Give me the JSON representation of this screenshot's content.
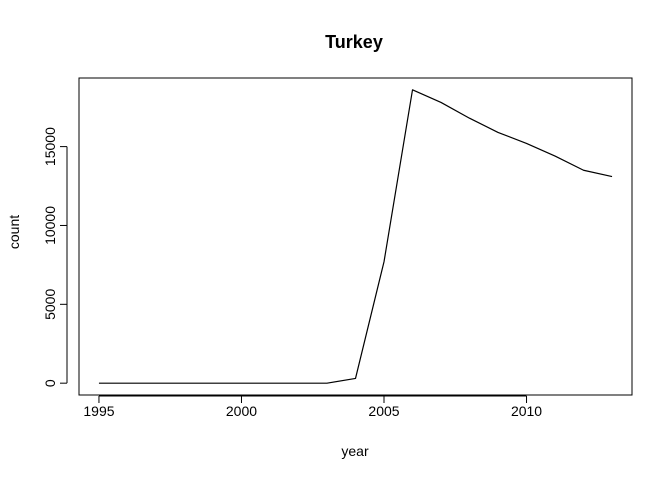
{
  "chart_data": {
    "type": "line",
    "title": "Turkey",
    "xlabel": "year",
    "ylabel": "count",
    "x": [
      1995,
      1996,
      1997,
      1998,
      1999,
      2000,
      2001,
      2002,
      2003,
      2004,
      2005,
      2006,
      2007,
      2008,
      2009,
      2010,
      2011,
      2012,
      2013
    ],
    "series": [
      {
        "values": [
          0,
          0,
          0,
          0,
          0,
          0,
          0,
          0,
          0,
          300,
          7700,
          18600,
          17800,
          16800,
          15900,
          15200,
          14400,
          13500,
          13100
        ]
      }
    ],
    "xlim": [
      1994.3,
      2013.7
    ],
    "ylim": [
      -750,
      19350
    ],
    "xticks": [
      1995,
      2000,
      2005,
      2010
    ],
    "yticks": [
      0,
      5000,
      10000,
      15000
    ],
    "grid": false,
    "line_color": "#000000"
  }
}
